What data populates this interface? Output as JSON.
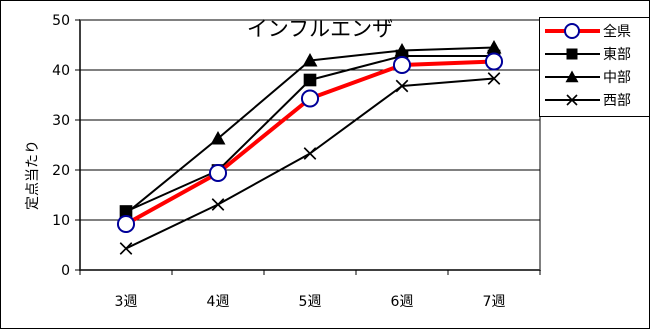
{
  "chart_data": {
    "type": "line",
    "title": "インフルエンザ",
    "xlabel": "",
    "ylabel": "定点当たり",
    "categories": [
      "3週",
      "4週",
      "5週",
      "6週",
      "7週"
    ],
    "ylim": [
      0,
      50
    ],
    "yticks": [
      0,
      10,
      20,
      30,
      40,
      50
    ],
    "grid": true,
    "legend_position": "right",
    "series": [
      {
        "name": "全県",
        "values": [
          9.2,
          19.4,
          34.3,
          41.0,
          41.7
        ],
        "color": "#ff0000",
        "marker": "circle"
      },
      {
        "name": "東部",
        "values": [
          11.7,
          19.9,
          38.0,
          42.8,
          42.8
        ],
        "color": "#000000",
        "marker": "square"
      },
      {
        "name": "中部",
        "values": [
          11.3,
          26.3,
          41.9,
          43.9,
          44.5
        ],
        "color": "#000000",
        "marker": "triangle"
      },
      {
        "name": "西部",
        "values": [
          4.3,
          13.1,
          23.3,
          36.8,
          38.3
        ],
        "color": "#000000",
        "marker": "x"
      }
    ]
  }
}
